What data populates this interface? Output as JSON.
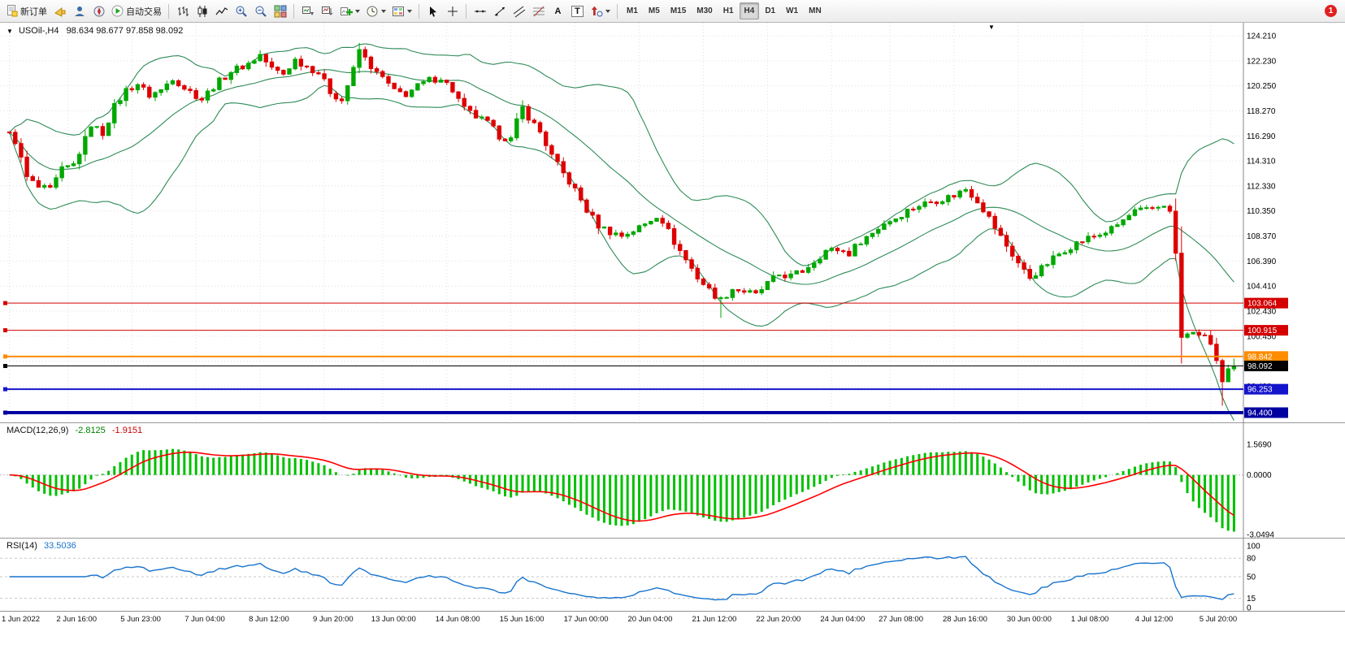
{
  "toolbar": {
    "new_order_label": "新订单",
    "autotrade_label": "自动交易",
    "glyph_text": "A",
    "glyph_label": "T",
    "badge": "1",
    "active_timeframe": "H4",
    "timeframes": [
      {
        "label": "M1"
      },
      {
        "label": "M5"
      },
      {
        "label": "M15"
      },
      {
        "label": "M30"
      },
      {
        "label": "H1"
      },
      {
        "label": "H4"
      },
      {
        "label": "D1"
      },
      {
        "label": "W1"
      },
      {
        "label": "MN"
      }
    ]
  },
  "chart": {
    "marker": "▼",
    "symbol_period": "USOil-,H4",
    "ohlc_text": "98.634 98.677 97.858 98.092"
  },
  "macd_panel": {
    "name": "MACD(12,26,9)",
    "value": "-2.8125",
    "signal_value": "-1.9151"
  },
  "rsi_panel": {
    "name": "RSI(14)",
    "value": "33.5036"
  },
  "chart_data": {
    "type": "candlestick",
    "symbol": "USOil-",
    "period": "H4",
    "candles": 211,
    "last_ohlc": {
      "open": 98.634,
      "high": 98.677,
      "low": 97.858,
      "close": 98.092
    },
    "price_keyframes": [
      [
        0,
        116.4
      ],
      [
        1,
        115.9
      ],
      [
        3,
        113.0
      ],
      [
        5,
        112.2
      ],
      [
        7,
        112.0
      ],
      [
        9,
        113.6
      ],
      [
        11,
        114.0
      ],
      [
        13,
        116.0
      ],
      [
        14,
        117.2
      ],
      [
        16,
        116.5
      ],
      [
        18,
        118.6
      ],
      [
        20,
        119.9
      ],
      [
        22,
        120.4
      ],
      [
        24,
        119.5
      ],
      [
        26,
        119.9
      ],
      [
        28,
        120.9
      ],
      [
        30,
        120.1
      ],
      [
        33,
        119.2
      ],
      [
        35,
        120.2
      ],
      [
        38,
        121.4
      ],
      [
        41,
        122.0
      ],
      [
        43,
        122.7
      ],
      [
        45,
        121.6
      ],
      [
        47,
        121.2
      ],
      [
        49,
        122.3
      ],
      [
        51,
        121.8
      ],
      [
        53,
        121.3
      ],
      [
        55,
        119.8
      ],
      [
        57,
        119.1
      ],
      [
        59,
        121.5
      ],
      [
        60,
        123.1
      ],
      [
        61,
        122.4
      ],
      [
        63,
        121.2
      ],
      [
        64,
        120.9
      ],
      [
        66,
        119.8
      ],
      [
        68,
        119.6
      ],
      [
        70,
        120.2
      ],
      [
        72,
        120.7
      ],
      [
        74,
        120.9
      ],
      [
        76,
        119.9
      ],
      [
        78,
        118.4
      ],
      [
        80,
        117.8
      ],
      [
        82,
        117.3
      ],
      [
        84,
        116.3
      ],
      [
        86,
        116.0
      ],
      [
        87,
        117.4
      ],
      [
        88,
        118.5
      ],
      [
        89,
        117.8
      ],
      [
        91,
        116.6
      ],
      [
        93,
        114.7
      ],
      [
        95,
        113.3
      ],
      [
        97,
        112.0
      ],
      [
        99,
        110.4
      ],
      [
        101,
        109.2
      ],
      [
        103,
        108.7
      ],
      [
        105,
        108.4
      ],
      [
        107,
        108.8
      ],
      [
        109,
        109.3
      ],
      [
        111,
        110.0
      ],
      [
        112,
        109.6
      ],
      [
        114,
        107.9
      ],
      [
        116,
        106.5
      ],
      [
        118,
        105.1
      ],
      [
        120,
        104.1
      ],
      [
        122,
        103.3
      ],
      [
        124,
        104.2
      ],
      [
        126,
        104.0
      ],
      [
        128,
        103.7
      ],
      [
        130,
        104.6
      ],
      [
        132,
        105.3
      ],
      [
        134,
        105.2
      ],
      [
        136,
        105.6
      ],
      [
        138,
        106.4
      ],
      [
        140,
        107.2
      ],
      [
        142,
        107.3
      ],
      [
        144,
        107.0
      ],
      [
        146,
        108.0
      ],
      [
        148,
        108.6
      ],
      [
        150,
        109.4
      ],
      [
        152,
        109.8
      ],
      [
        154,
        110.4
      ],
      [
        156,
        110.8
      ],
      [
        158,
        111.1
      ],
      [
        160,
        111.3
      ],
      [
        162,
        111.6
      ],
      [
        164,
        112.1
      ],
      [
        166,
        111.2
      ],
      [
        168,
        109.8
      ],
      [
        170,
        108.3
      ],
      [
        172,
        106.9
      ],
      [
        174,
        105.6
      ],
      [
        175,
        105.1
      ],
      [
        177,
        105.8
      ],
      [
        179,
        106.6
      ],
      [
        181,
        107.3
      ],
      [
        183,
        107.8
      ],
      [
        185,
        108.2
      ],
      [
        187,
        108.5
      ],
      [
        189,
        108.9
      ],
      [
        191,
        109.6
      ],
      [
        193,
        110.3
      ],
      [
        195,
        110.4
      ],
      [
        197,
        110.7
      ],
      [
        198,
        110.9
      ],
      [
        199,
        110.2
      ],
      [
        200,
        107.0
      ],
      [
        201,
        100.3
      ],
      [
        202,
        100.5
      ],
      [
        203,
        100.9
      ],
      [
        204,
        100.3
      ],
      [
        205,
        100.6
      ],
      [
        206,
        99.8
      ],
      [
        207,
        98.4
      ],
      [
        208,
        96.6
      ],
      [
        209,
        97.7
      ],
      [
        210,
        98.092
      ]
    ],
    "spikes": [
      [
        122,
        101.9
      ],
      [
        208,
        94.95
      ]
    ],
    "bollinger": {
      "period": 20,
      "deviation": 2,
      "color": "#2E8B57"
    },
    "up_color": "#00A800",
    "down_color": "#DE0000",
    "price_scale": [
      {
        "label": "124.210",
        "p": 124.21
      },
      {
        "label": "122.230",
        "p": 122.23
      },
      {
        "label": "120.250",
        "p": 120.25
      },
      {
        "label": "118.270",
        "p": 118.27
      },
      {
        "label": "116.290",
        "p": 116.29
      },
      {
        "label": "114.310",
        "p": 114.31
      },
      {
        "label": "112.330",
        "p": 112.33
      },
      {
        "label": "110.350",
        "p": 110.35
      },
      {
        "label": "108.370",
        "p": 108.37
      },
      {
        "label": "106.390",
        "p": 106.39
      },
      {
        "label": "104.410",
        "p": 104.41
      },
      {
        "label": "102.430",
        "p": 102.43
      },
      {
        "label": "100.450",
        "p": 100.45
      },
      {
        "label": "98.470",
        "p": 98.47
      },
      {
        "label": "96.490",
        "p": 96.49
      }
    ],
    "lines": [
      {
        "label": "103.064",
        "p": 103.064,
        "color": "#D40000",
        "width": 1
      },
      {
        "label": "100.915",
        "p": 100.915,
        "color": "#D40000",
        "width": 1
      },
      {
        "label": "98.842",
        "p": 98.842,
        "color": "#FF8C00",
        "width": 2
      },
      {
        "label": "98.092",
        "p": 98.092,
        "color": "#000000",
        "width": 1
      },
      {
        "label": "96.253",
        "p": 96.253,
        "color": "#1414CC",
        "width": 2
      },
      {
        "label": "94.400",
        "p": 94.4,
        "color": "#0000A0",
        "width": 4
      }
    ],
    "x_ticks": [
      {
        "label": "1 Jun 2022",
        "i": 0
      },
      {
        "label": "2 Jun 16:00",
        "i": 10
      },
      {
        "label": "5 Jun 23:00",
        "i": 21
      },
      {
        "label": "7 Jun 04:00",
        "i": 32
      },
      {
        "label": "8 Jun 12:00",
        "i": 43
      },
      {
        "label": "9 Jun 20:00",
        "i": 54
      },
      {
        "label": "13 Jun 00:00",
        "i": 64
      },
      {
        "label": "14 Jun 08:00",
        "i": 75
      },
      {
        "label": "15 Jun 16:00",
        "i": 86
      },
      {
        "label": "17 Jun 00:00",
        "i": 97
      },
      {
        "label": "20 Jun 04:00",
        "i": 108
      },
      {
        "label": "21 Jun 12:00",
        "i": 119
      },
      {
        "label": "22 Jun 20:00",
        "i": 130
      },
      {
        "label": "24 Jun 04:00",
        "i": 141
      },
      {
        "label": "27 Jun 08:00",
        "i": 151
      },
      {
        "label": "28 Jun 16:00",
        "i": 162
      },
      {
        "label": "30 Jun 00:00",
        "i": 173
      },
      {
        "label": "1 Jul 08:00",
        "i": 184
      },
      {
        "label": "4 Jul 12:00",
        "i": 195
      },
      {
        "label": "5 Jul 20:00",
        "i": 206
      }
    ],
    "macd": {
      "fast": 12,
      "slow": 26,
      "signal": 9,
      "hist_color": "#00C000",
      "signal_color": "#FF0000",
      "scale": [
        {
          "label": "1.5690",
          "v": 1.569
        },
        {
          "label": "0.0000",
          "v": 0
        },
        {
          "label": "-3.0494",
          "v": -3.0494
        }
      ]
    },
    "rsi": {
      "period": 14,
      "color": "#1874CD",
      "scale": [
        {
          "label": "100",
          "v": 100
        },
        {
          "label": "80",
          "v": 80
        },
        {
          "label": "50",
          "v": 50
        },
        {
          "label": "15",
          "v": 15
        },
        {
          "label": "0",
          "v": 0
        }
      ],
      "levels": [
        80,
        50,
        15
      ]
    }
  }
}
